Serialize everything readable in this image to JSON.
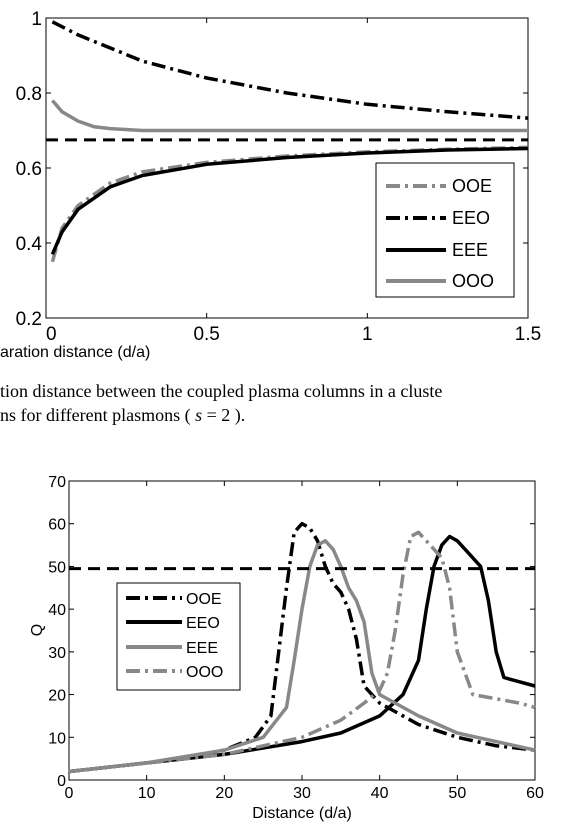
{
  "caption": {
    "line1": "tion distance between the coupled plasma columns in a cluste",
    "line2_pre": "ns for different plasmons ( ",
    "line2_var": "s",
    "line2_post": " = 2 )."
  },
  "chart_data": [
    {
      "type": "line",
      "title": "",
      "xlabel": "aration distance (d/a)",
      "ylabel": "",
      "xlim": [
        0,
        1.5
      ],
      "ylim": [
        0.2,
        1.0
      ],
      "x_ticks": [
        "0",
        "0.5",
        "1",
        "1.5"
      ],
      "y_ticks": [
        "0.2",
        "0.4",
        "0.6",
        "0.8",
        "1"
      ],
      "grid": false,
      "legend_position": "bottom-right",
      "series": [
        {
          "name": "OOE",
          "color": "#888888",
          "dash": "dash-dot",
          "x": [
            0.02,
            0.05,
            0.1,
            0.2,
            0.3,
            0.5,
            0.75,
            1.0,
            1.25,
            1.5
          ],
          "y": [
            0.35,
            0.44,
            0.5,
            0.56,
            0.59,
            0.615,
            0.632,
            0.643,
            0.65,
            0.655
          ]
        },
        {
          "name": "EEO",
          "color": "#000000",
          "dash": "dash-dot",
          "x": [
            0.02,
            0.1,
            0.2,
            0.3,
            0.5,
            0.75,
            1.0,
            1.25,
            1.5
          ],
          "y": [
            0.99,
            0.955,
            0.92,
            0.885,
            0.84,
            0.8,
            0.77,
            0.75,
            0.733
          ]
        },
        {
          "name": "EEE",
          "color": "#000000",
          "dash": "solid",
          "x": [
            0.02,
            0.05,
            0.1,
            0.2,
            0.3,
            0.5,
            0.75,
            1.0,
            1.25,
            1.5
          ],
          "y": [
            0.37,
            0.43,
            0.49,
            0.55,
            0.58,
            0.61,
            0.628,
            0.64,
            0.648,
            0.652
          ]
        },
        {
          "name": "OOO",
          "color": "#888888",
          "dash": "solid",
          "x": [
            0.02,
            0.05,
            0.1,
            0.15,
            0.2,
            0.3,
            0.5,
            1.0,
            1.5
          ],
          "y": [
            0.78,
            0.75,
            0.725,
            0.71,
            0.705,
            0.7,
            0.7,
            0.7,
            0.7
          ]
        },
        {
          "name": "",
          "color": "#000000",
          "dash": "dashed",
          "x": [
            0,
            1.5
          ],
          "y": [
            0.675,
            0.675
          ]
        }
      ]
    },
    {
      "type": "line",
      "title": "",
      "xlabel": "Distance (d/a)",
      "ylabel": "Q",
      "xlim": [
        0,
        60
      ],
      "ylim": [
        0,
        70
      ],
      "x_ticks": [
        "0",
        "10",
        "20",
        "30",
        "40",
        "50",
        "60"
      ],
      "y_ticks": [
        "0",
        "10",
        "20",
        "30",
        "40",
        "50",
        "60",
        "70"
      ],
      "grid": false,
      "legend_position": "left",
      "series": [
        {
          "name": "OOE",
          "color": "#000000",
          "dash": "dash-dot",
          "x": [
            0,
            5,
            10,
            15,
            20,
            24,
            26,
            27,
            28,
            29,
            30,
            31,
            32,
            33,
            34,
            35,
            36,
            37,
            38,
            40,
            45,
            50,
            55,
            60
          ],
          "y": [
            2,
            3,
            4,
            5,
            7,
            10,
            15,
            30,
            45,
            58,
            60,
            59,
            56,
            50,
            46,
            44,
            40,
            33,
            22,
            18,
            13,
            10,
            8,
            7
          ]
        },
        {
          "name": "EEO",
          "color": "#000000",
          "dash": "solid",
          "x": [
            0,
            10,
            20,
            30,
            35,
            40,
            43,
            45,
            46,
            47,
            48,
            49,
            50,
            51,
            52,
            53,
            54,
            55,
            56,
            58,
            60
          ],
          "y": [
            2,
            4,
            6,
            9,
            11,
            15,
            20,
            28,
            40,
            50,
            55,
            57,
            56,
            54,
            52,
            50,
            42,
            30,
            24,
            23,
            22
          ]
        },
        {
          "name": "EEE",
          "color": "#888888",
          "dash": "solid",
          "x": [
            0,
            10,
            20,
            25,
            28,
            29,
            30,
            31,
            32,
            33,
            34,
            35,
            36,
            37,
            38,
            39,
            40,
            45,
            50,
            55,
            60
          ],
          "y": [
            2,
            4,
            7,
            10,
            17,
            28,
            40,
            50,
            55,
            56,
            54,
            50,
            45,
            42,
            37,
            25,
            20,
            15,
            11,
            9,
            7
          ]
        },
        {
          "name": "OOO",
          "color": "#888888",
          "dash": "dash-dot",
          "x": [
            0,
            10,
            20,
            30,
            35,
            38,
            40,
            41,
            42,
            43,
            44,
            45,
            46,
            47,
            48,
            49,
            50,
            52,
            55,
            58,
            60
          ],
          "y": [
            2,
            4,
            6,
            10,
            14,
            18,
            21,
            25,
            35,
            48,
            57,
            58,
            56,
            54,
            52,
            45,
            30,
            20,
            19,
            18,
            17
          ]
        },
        {
          "name": "",
          "color": "#000000",
          "dash": "dashed",
          "x": [
            0,
            60
          ],
          "y": [
            49.5,
            49.5
          ]
        }
      ]
    }
  ]
}
